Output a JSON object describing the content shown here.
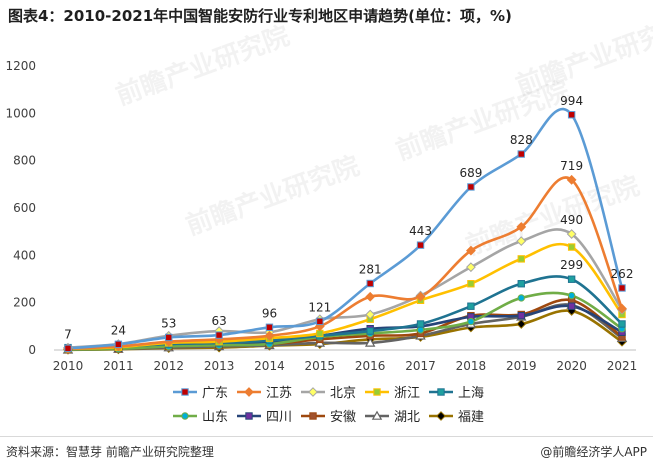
{
  "title": "图表4：2010-2021年中国智能安防行业专利地区申请趋势(单位：项，%)",
  "source": "资料来源：智慧芽 前瞻产业研究院整理",
  "brand": "@前瞻经济学人APP",
  "watermark": "前瞻产业研究院",
  "chart_data": {
    "type": "line",
    "x": [
      "2010",
      "2011",
      "2012",
      "2013",
      "2014",
      "2015",
      "2016",
      "2017",
      "2018",
      "2019",
      "2020",
      "2021"
    ],
    "ylim": [
      0,
      1200
    ],
    "yticks": [
      0,
      200,
      400,
      600,
      800,
      1000,
      1200
    ],
    "grid": false,
    "legend_position": "bottom",
    "series": [
      {
        "name": "广东",
        "color": "#5b9bd5",
        "marker": "square",
        "marker_color": "#c00000",
        "values": [
          7,
          24,
          53,
          63,
          96,
          121,
          281,
          443,
          689,
          828,
          994,
          262
        ],
        "labels": [
          "7",
          "24",
          "53",
          "63",
          "96",
          "121",
          "281",
          "443",
          "689",
          "828",
          "994",
          "262"
        ]
      },
      {
        "name": "江苏",
        "color": "#ed7d31",
        "marker": "diamond",
        "marker_color": "#ed7d31",
        "values": [
          5,
          15,
          35,
          45,
          60,
          100,
          225,
          225,
          420,
          520,
          719,
          175
        ],
        "labels": [
          "",
          "",
          "",
          "",
          "",
          "",
          "",
          "",
          "",
          "",
          "719",
          ""
        ]
      },
      {
        "name": "北京",
        "color": "#a5a5a5",
        "marker": "diamond",
        "marker_color": "#ffff66",
        "values": [
          10,
          25,
          60,
          80,
          75,
          130,
          150,
          230,
          350,
          460,
          490,
          170
        ],
        "labels": [
          "",
          "",
          "",
          "",
          "",
          "",
          "",
          "",
          "",
          "",
          "490",
          ""
        ]
      },
      {
        "name": "浙江",
        "color": "#ffc000",
        "marker": "square",
        "marker_color": "#9acd32",
        "values": [
          5,
          12,
          30,
          35,
          50,
          70,
          130,
          210,
          280,
          385,
          435,
          150
        ],
        "labels": [
          "",
          "",
          "",
          "",
          "",
          "",
          "",
          "",
          "",
          "",
          "",
          ""
        ]
      },
      {
        "name": "上海",
        "color": "#1f7391",
        "marker": "square",
        "marker_color": "#1fa0a0",
        "values": [
          10,
          15,
          25,
          30,
          40,
          60,
          80,
          110,
          185,
          280,
          299,
          110
        ],
        "labels": [
          "",
          "",
          "",
          "",
          "",
          "",
          "",
          "",
          "",
          "",
          "299",
          ""
        ]
      },
      {
        "name": "山东",
        "color": "#70ad47",
        "marker": "circle",
        "marker_color": "#00b0d8",
        "values": [
          2,
          5,
          15,
          20,
          25,
          55,
          70,
          85,
          120,
          220,
          230,
          90
        ],
        "labels": [
          "",
          "",
          "",
          "",
          "",
          "",
          "",
          "",
          "",
          "",
          "",
          ""
        ]
      },
      {
        "name": "四川",
        "color": "#264478",
        "marker": "square",
        "marker_color": "#7030a0",
        "values": [
          3,
          8,
          20,
          25,
          30,
          60,
          90,
          100,
          140,
          145,
          185,
          75
        ],
        "labels": [
          "",
          "",
          "",
          "",
          "",
          "",
          "",
          "",
          "",
          "",
          "",
          ""
        ]
      },
      {
        "name": "安徽",
        "color": "#9e480e",
        "marker": "square",
        "marker_color": "#a0522d",
        "values": [
          2,
          5,
          15,
          20,
          25,
          45,
          60,
          70,
          145,
          150,
          210,
          55
        ],
        "labels": [
          "",
          "",
          "",
          "",
          "",
          "",
          "",
          "",
          "",
          "",
          "",
          ""
        ]
      },
      {
        "name": "湖北",
        "color": "#636363",
        "marker": "triangle",
        "marker_color": "#ffffff",
        "values": [
          1,
          4,
          10,
          15,
          20,
          30,
          30,
          60,
          110,
          140,
          190,
          50
        ],
        "labels": [
          "",
          "",
          "",
          "",
          "",
          "",
          "",
          "",
          "",
          "",
          "",
          ""
        ]
      },
      {
        "name": "福建",
        "color": "#997300",
        "marker": "diamond",
        "marker_color": "#000000",
        "values": [
          1,
          3,
          8,
          10,
          18,
          25,
          45,
          55,
          95,
          110,
          165,
          35
        ],
        "labels": [
          "",
          "",
          "",
          "",
          "",
          "",
          "",
          "",
          "",
          "",
          "",
          ""
        ]
      }
    ]
  }
}
